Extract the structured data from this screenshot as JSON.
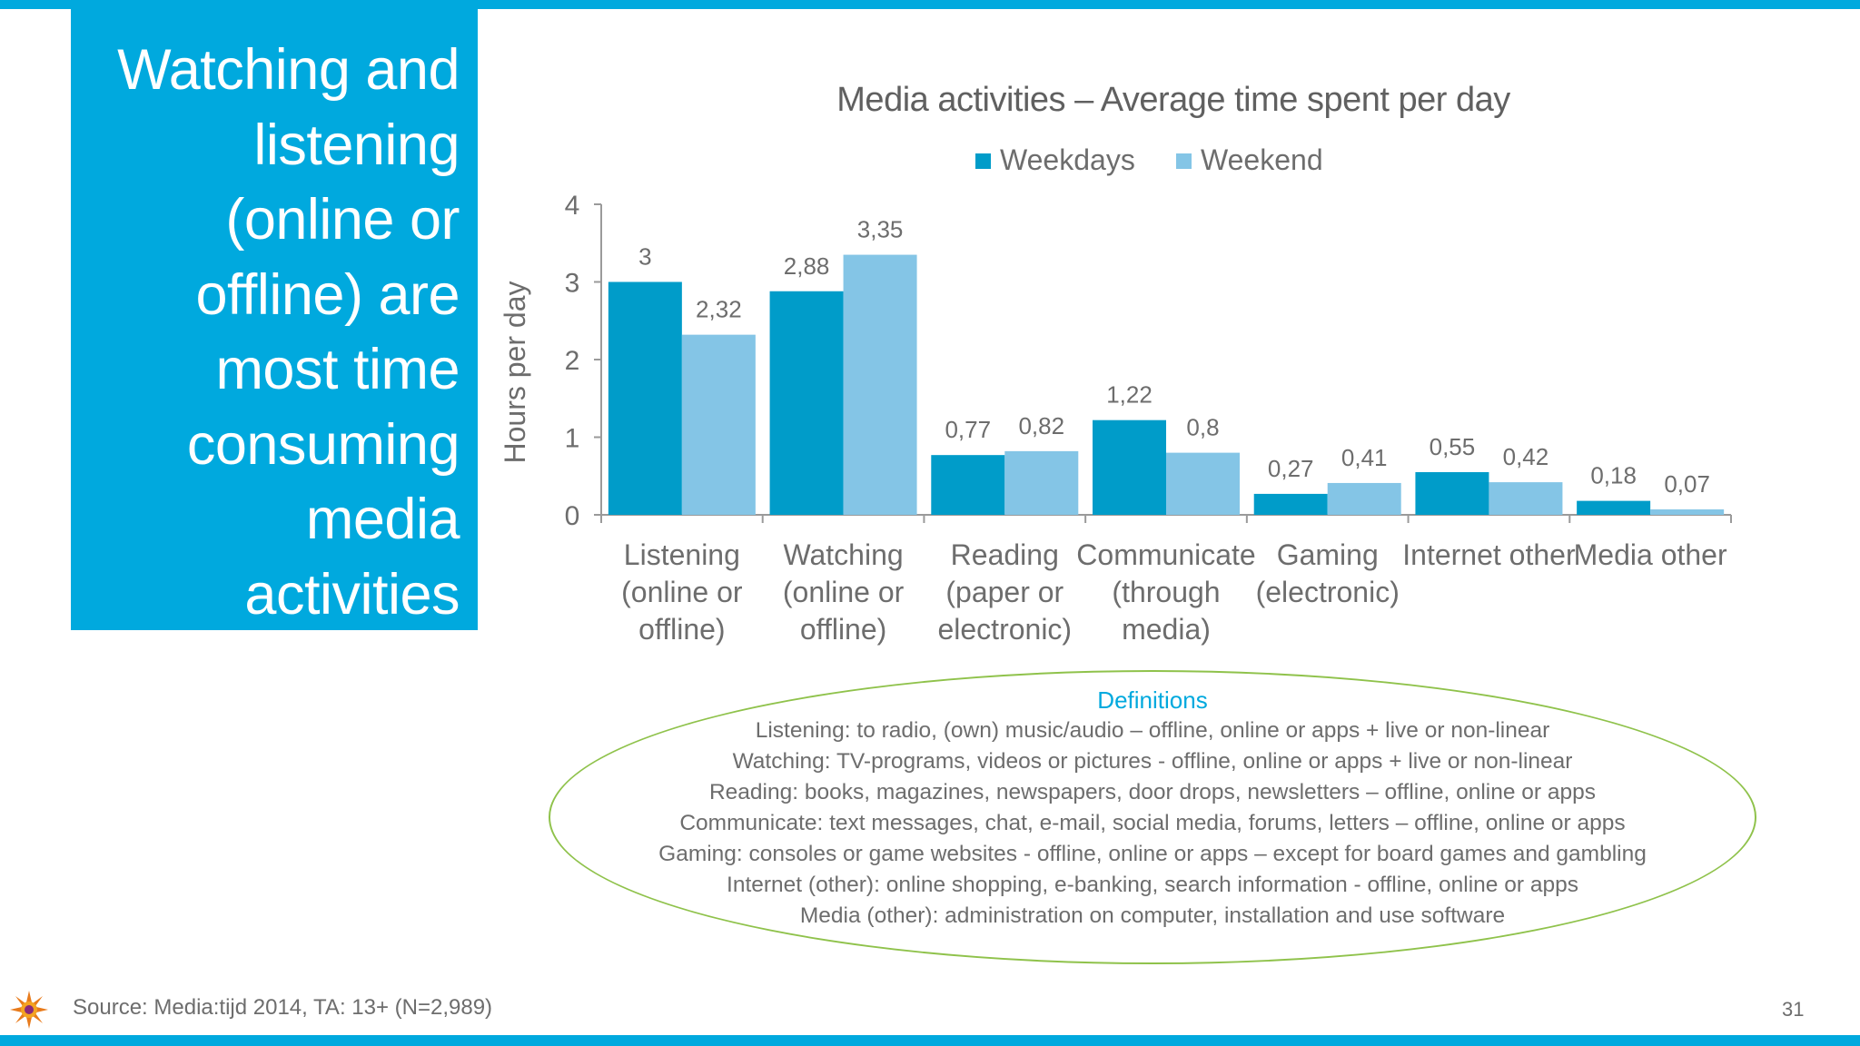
{
  "slide": {
    "title_lines": [
      "Watching and",
      "listening",
      "(online or",
      "offline) are",
      "most time",
      "consuming",
      "media",
      "activities"
    ],
    "definitions": {
      "title": "Definitions",
      "lines": [
        "Listening: to radio, (own) music/audio – offline, online or apps + live or non-linear",
        "Watching: TV-programs, videos or pictures - offline, online or apps + live or non-linear",
        "Reading: books, magazines, newspapers, door drops, newsletters – offline, online or apps",
        "Communicate: text messages, chat, e-mail, social media, forums, letters – offline, online or apps",
        "Gaming: consoles or game websites - offline, online or apps – except for board games and gambling",
        "Internet (other): online shopping, e-banking, search information  - offline, online or apps",
        "Media (other): administration on computer, installation and use software"
      ]
    },
    "source": "Source: Media:tijd 2014, TA: 13+ (N=2,989)",
    "page_number": "31",
    "logo_icon": "sun-logo-icon"
  },
  "chart_data": {
    "type": "bar",
    "title": "Media activities – Average time spent per day",
    "ylabel": "Hours per day",
    "xlabel": "",
    "ylim": [
      0,
      4
    ],
    "yticks": [
      0,
      1,
      2,
      3,
      4
    ],
    "legend_position": "top",
    "categories": [
      [
        "Listening",
        "(online or",
        "offline)"
      ],
      [
        "Watching",
        "(online or",
        "offline)"
      ],
      [
        "Reading",
        "(paper or",
        "electronic)"
      ],
      [
        "Communicate",
        "(through",
        "media)"
      ],
      [
        "Gaming",
        "(electronic)"
      ],
      [
        "Internet other"
      ],
      [
        "Media other"
      ]
    ],
    "series": [
      {
        "name": "Weekdays",
        "color": "#009cc9",
        "values": [
          3,
          2.88,
          0.77,
          1.22,
          0.27,
          0.55,
          0.18
        ],
        "labels": [
          "3",
          "2,88",
          "0,77",
          "1,22",
          "0,27",
          "0,55",
          "0,18"
        ]
      },
      {
        "name": "Weekend",
        "color": "#84c5e6",
        "values": [
          2.32,
          3.35,
          0.82,
          0.8,
          0.41,
          0.42,
          0.07
        ],
        "labels": [
          "2,32",
          "3,35",
          "0,82",
          "0,8",
          "0,41",
          "0,42",
          "0,07"
        ]
      }
    ],
    "colors": {
      "axis": "#9a9a9a",
      "text": "#6d6d6d",
      "title": "#606060"
    }
  }
}
